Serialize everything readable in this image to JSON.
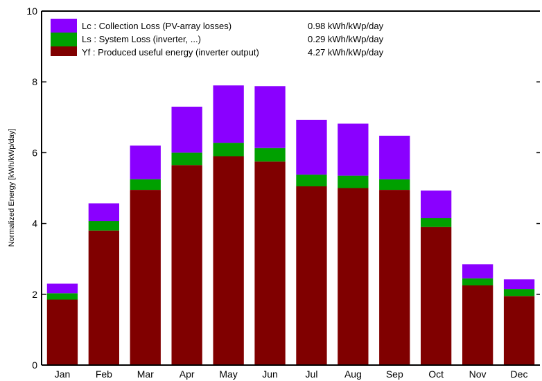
{
  "chart_data": {
    "type": "bar",
    "stacked": true,
    "ylabel": "Normalized Energy [kWh/kWp/day]",
    "xlabel": "",
    "ylim": [
      0,
      10
    ],
    "yticks": [
      0,
      2,
      4,
      6,
      8,
      10
    ],
    "categories": [
      "Jan",
      "Feb",
      "Mar",
      "Apr",
      "May",
      "Jun",
      "Jul",
      "Aug",
      "Sep",
      "Oct",
      "Nov",
      "Dec"
    ],
    "series": [
      {
        "name": "Yf : Produced useful energy  (inverter output)",
        "color": "#800000",
        "values": [
          1.85,
          3.8,
          4.95,
          5.65,
          5.9,
          5.75,
          5.05,
          5.0,
          4.95,
          3.9,
          2.25,
          1.95
        ],
        "legend_value": "4.27 kWh/kWp/day"
      },
      {
        "name": "Ls : System Loss  (inverter, ...)",
        "color": "#00a000",
        "values": [
          0.18,
          0.27,
          0.3,
          0.35,
          0.38,
          0.38,
          0.33,
          0.35,
          0.3,
          0.25,
          0.2,
          0.2
        ],
        "legend_value": "0.29 kWh/kWp/day"
      },
      {
        "name": "Lc : Collection Loss (PV-array losses)",
        "color": "#8a00ff",
        "values": [
          0.27,
          0.5,
          0.95,
          1.3,
          1.62,
          1.75,
          1.55,
          1.47,
          1.23,
          0.78,
          0.4,
          0.27
        ],
        "legend_value": "0.98 kWh/kWp/day"
      }
    ],
    "legend_position": "top-left",
    "grid": false
  }
}
